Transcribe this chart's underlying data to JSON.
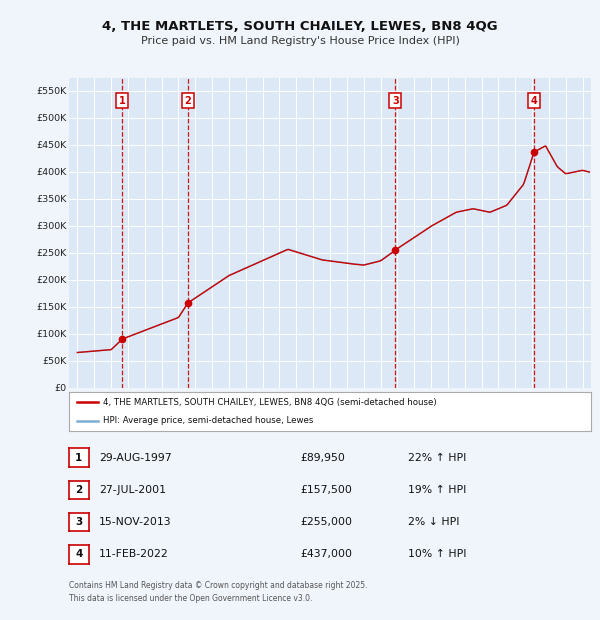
{
  "title1": "4, THE MARTLETS, SOUTH CHAILEY, LEWES, BN8 4QG",
  "title2": "Price paid vs. HM Land Registry's House Price Index (HPI)",
  "legend1": "4, THE MARTLETS, SOUTH CHAILEY, LEWES, BN8 4QG (semi-detached house)",
  "legend2": "HPI: Average price, semi-detached house, Lewes",
  "sales": [
    {
      "num": 1,
      "date": "29-AUG-1997",
      "price": 89950,
      "pct": "22%",
      "dir": "↑"
    },
    {
      "num": 2,
      "date": "27-JUL-2001",
      "price": 157500,
      "pct": "19%",
      "dir": "↑"
    },
    {
      "num": 3,
      "date": "15-NOV-2013",
      "price": 255000,
      "pct": "2%",
      "dir": "↓"
    },
    {
      "num": 4,
      "date": "11-FEB-2022",
      "price": 437000,
      "pct": "10%",
      "dir": "↑"
    }
  ],
  "sale_years": [
    1997.66,
    2001.57,
    2013.88,
    2022.12
  ],
  "footnote1": "Contains HM Land Registry data © Crown copyright and database right 2025.",
  "footnote2": "This data is licensed under the Open Government Licence v3.0.",
  "fig_facecolor": "#f0f4fb",
  "plot_facecolor": "#dce8f5",
  "grid_color": "#ffffff",
  "red_color": "#cc0000",
  "blue_color": "#7eadd4",
  "yticks": [
    0,
    50000,
    100000,
    150000,
    200000,
    250000,
    300000,
    350000,
    400000,
    450000,
    500000,
    550000
  ],
  "ylabels": [
    "£0",
    "£50K",
    "£100K",
    "£150K",
    "£200K",
    "£250K",
    "£300K",
    "£350K",
    "£400K",
    "£450K",
    "£500K",
    "£550K"
  ],
  "ylim": [
    0,
    575000
  ],
  "xlim": [
    1994.5,
    2025.5
  ],
  "hpi_base": 65000,
  "hpi_keypoints": [
    [
      1995.0,
      1.0
    ],
    [
      1997.0,
      1.08
    ],
    [
      1997.66,
      1.384
    ],
    [
      2001.0,
      2.0
    ],
    [
      2001.57,
      2.42
    ],
    [
      2004.0,
      3.2
    ],
    [
      2007.5,
      3.95
    ],
    [
      2008.5,
      3.8
    ],
    [
      2009.5,
      3.65
    ],
    [
      2011.0,
      3.55
    ],
    [
      2012.0,
      3.5
    ],
    [
      2013.0,
      3.62
    ],
    [
      2013.88,
      3.923
    ],
    [
      2016.0,
      4.6
    ],
    [
      2017.5,
      5.0
    ],
    [
      2018.5,
      5.1
    ],
    [
      2019.5,
      5.0
    ],
    [
      2020.5,
      5.2
    ],
    [
      2021.5,
      5.8
    ],
    [
      2022.12,
      6.718
    ],
    [
      2022.8,
      6.9
    ],
    [
      2023.5,
      6.3
    ],
    [
      2024.0,
      6.1
    ],
    [
      2025.0,
      6.2
    ],
    [
      2025.4,
      6.15
    ]
  ]
}
